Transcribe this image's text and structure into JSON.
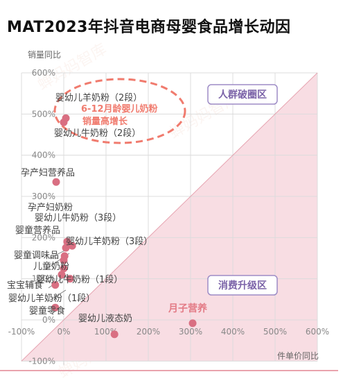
{
  "title": "MAT2023年抖音电商母婴食品增长动因",
  "watermark": "蝉妈妈智库",
  "chart_data": {
    "type": "scatter",
    "title": "MAT2023年抖音电商母婴食品增长动因",
    "xlabel": "件单价同比",
    "ylabel": "销量同比",
    "xlim": [
      -100,
      600
    ],
    "ylim": [
      -100,
      600
    ],
    "x_ticks": [
      "-100%",
      "0%",
      "100%",
      "200%",
      "300%",
      "400%",
      "500%",
      "600%"
    ],
    "y_ticks": [
      "-100%",
      "0%",
      "100%",
      "200%",
      "300%",
      "400%",
      "500%",
      "600%"
    ],
    "grid": true,
    "points": [
      {
        "label": "婴幼儿羊奶粉（2段）",
        "x": 5,
        "y": 490
      },
      {
        "label": "婴幼儿牛奶粉（2段）",
        "x": 0,
        "y": 480
      },
      {
        "label": "孕产妇营养品",
        "x": -18,
        "y": 335
      },
      {
        "label": "孕产妇奶粉",
        "x": 8,
        "y": 190
      },
      {
        "label": "婴幼儿牛奶粉（3段）",
        "x": 5,
        "y": 175
      },
      {
        "label": "婴童营养品",
        "x": 2,
        "y": 155
      },
      {
        "label": "婴幼儿羊奶粉（3段）",
        "x": 20,
        "y": 180
      },
      {
        "label": "婴童调味品",
        "x": 0,
        "y": 145
      },
      {
        "label": "儿童奶粉",
        "x": 0,
        "y": 125
      },
      {
        "label": "婴幼儿牛奶粉（1段）",
        "x": 15,
        "y": 100
      },
      {
        "label": "宝宝辅食",
        "x": -5,
        "y": 110
      },
      {
        "label": "婴幼儿羊奶粉（1段）",
        "x": -20,
        "y": 85
      },
      {
        "label": "婴童零食",
        "x": -20,
        "y": 30
      },
      {
        "label": "婴幼儿液态奶",
        "x": 120,
        "y": -35
      },
      {
        "label": "月子营养",
        "x": 305,
        "y": -8
      }
    ],
    "zones": [
      {
        "label": "人群破圈区",
        "color": "#7b63a8"
      },
      {
        "label": "消费升级区",
        "color": "#7b63a8"
      }
    ],
    "annotations": [
      {
        "text": "6-12月龄婴儿奶粉",
        "color": "#f07b6e"
      },
      {
        "text": "销量高增长",
        "color": "#f07b6e"
      }
    ]
  },
  "colors": {
    "point": "#d96f82",
    "shade": "#f8dde3",
    "highlight_label": "#e37b86",
    "grid": "#dcdcdc",
    "zone_border": "#9d8cc6",
    "zone_text": "#7b63a8",
    "ellipse": "#f07b6e"
  }
}
